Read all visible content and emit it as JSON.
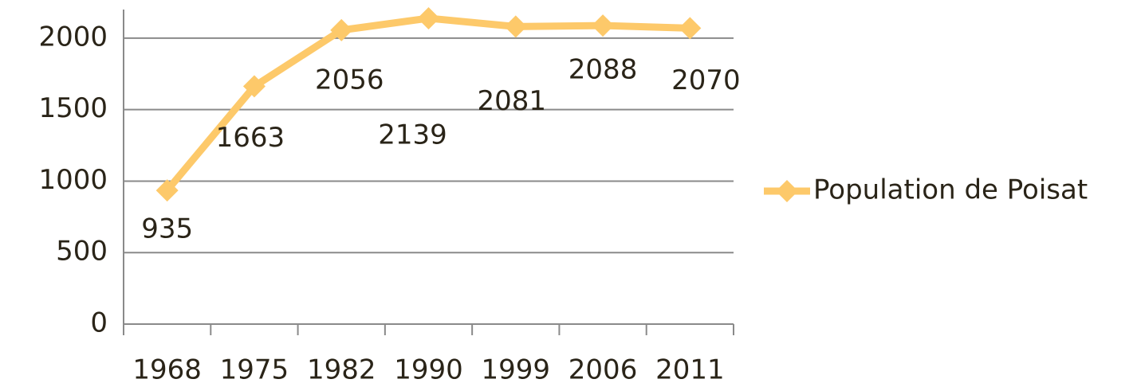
{
  "chart_data": {
    "type": "line",
    "categories": [
      "1968",
      "1975",
      "1982",
      "1990",
      "1999",
      "2006",
      "2011"
    ],
    "series": [
      {
        "name": "Population de Poisat",
        "color": "#fdc96a",
        "values": [
          935,
          1663,
          2056,
          2139,
          2081,
          2088,
          2070
        ]
      }
    ],
    "ylim": [
      0,
      2200
    ],
    "yticks": [
      0,
      500,
      1000,
      1500,
      2000
    ],
    "grid": true,
    "legend": "right"
  }
}
